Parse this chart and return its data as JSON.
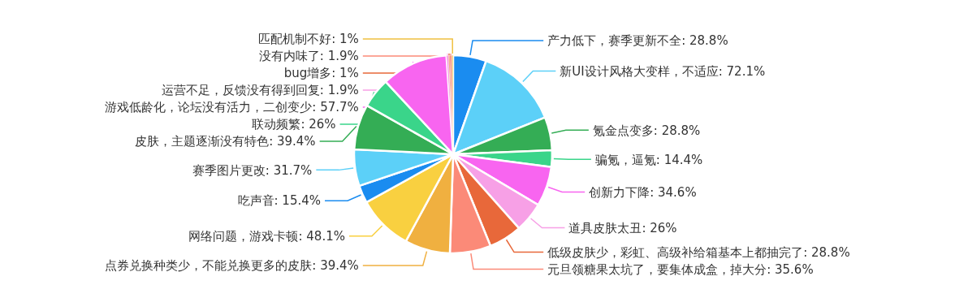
{
  "chart_data": {
    "type": "pie",
    "categories": [
      "产力低下，赛季更新不全",
      "新UI设计风格大变样，不适应",
      "氪金点变多",
      "骗氪，逼氪",
      "创新力下降",
      "道具皮肤太丑",
      "低级皮肤少，彩虹、高级补给箱基本上都抽完了",
      "元旦领糖果太坑了，要集体成盒，掉大分",
      "点券兑换种类少，不能兑换更多的皮肤",
      "网络问题，游戏卡顿",
      "吃声音",
      "赛季图片更改",
      "皮肤，主题逐渐没有特色",
      "联动频繁",
      "游戏低龄化，论坛没有活力，二创变少",
      "运营不足，反馈没有得到回复",
      "bug增多",
      "没有内味了",
      "匹配机制不好"
    ],
    "values": [
      28.8,
      72.1,
      28.8,
      14.4,
      34.6,
      26,
      28.8,
      35.6,
      39.4,
      48.1,
      15.4,
      31.7,
      39.4,
      26,
      57.7,
      1.9,
      1,
      1.9,
      1
    ],
    "value_labels": [
      "28.8%",
      "72.1%",
      "28.8%",
      "14.4%",
      "34.6%",
      "26%",
      "28.8%",
      "35.6%",
      "39.4%",
      "48.1%",
      "15.4%",
      "31.7%",
      "39.4%",
      "26%",
      "57.7%",
      "1.9%",
      "1%",
      "1.9%",
      "1%"
    ],
    "colors": [
      "#1a8cf0",
      "#5cd0f8",
      "#34ad55",
      "#3ad58a",
      "#f865f0",
      "#f7a0e6",
      "#e8683a",
      "#fb8a78",
      "#f0b040",
      "#f9d040",
      "#1a8cf0",
      "#5cd0f8",
      "#34ad55",
      "#3ad58a",
      "#f865f0",
      "#f7a0e6",
      "#e8683a",
      "#fb8a78",
      "#f0c040"
    ]
  }
}
